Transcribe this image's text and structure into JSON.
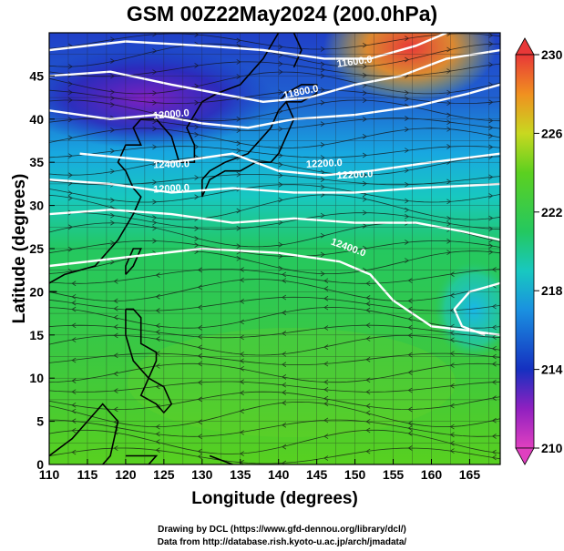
{
  "figure": {
    "title": "GSM 00Z22May2024 (200.0hPa)",
    "xlabel": "Longitude (degrees)",
    "ylabel": "Latitude  (degrees)",
    "credit_line1": "Drawing by DCL (https://www.gfd-dennou.org/library/dcl/)",
    "credit_line2": "Data from http://database.rish.kyoto-u.ac.jp/arch/jmadata/"
  },
  "chart_data": {
    "type": "heatmap",
    "title": "GSM 00Z22May2024 (200.0hPa)",
    "xlabel": "Longitude (degrees)",
    "ylabel": "Latitude  (degrees)",
    "xlim": [
      110,
      169
    ],
    "ylim": [
      0,
      50
    ],
    "x_ticks": [
      "110",
      "115",
      "120",
      "125",
      "130",
      "135",
      "140",
      "145",
      "150",
      "155",
      "160",
      "165"
    ],
    "y_ticks": [
      "0",
      "5",
      "10",
      "15",
      "20",
      "25",
      "30",
      "35",
      "40",
      "45"
    ],
    "grid": true,
    "colorbar": {
      "range": [
        210,
        230
      ],
      "tick_labels": [
        "210",
        "214",
        "218",
        "222",
        "226",
        "230"
      ]
    },
    "contour_labels": [
      "11600.0",
      "11800.0",
      "12000.0",
      "12200.0",
      "12400.0",
      "12000.0",
      "12200.0",
      "12400.0"
    ],
    "colors": {
      "min": "#e040c0",
      "low": "#1530c0",
      "mid_low": "#1ab0e0",
      "mid": "#24c860",
      "mid_high": "#90d820",
      "high": "#e07818",
      "max": "#e83838"
    }
  }
}
